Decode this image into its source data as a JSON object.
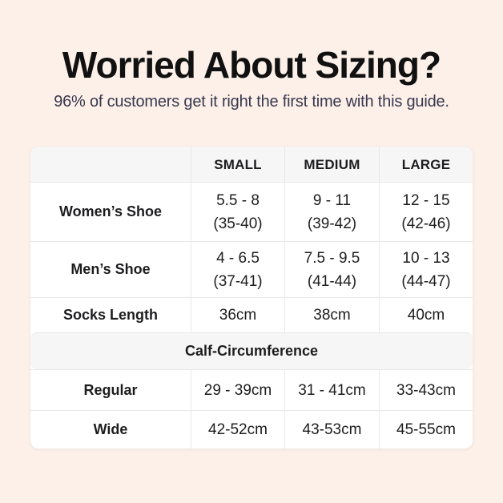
{
  "page": {
    "title": "Worried About Sizing?",
    "subtitle": "96% of customers get it right the first time with this guide."
  },
  "table": {
    "header": {
      "blank": "",
      "small": "SMALL",
      "medium": "MEDIUM",
      "large": "LARGE"
    },
    "womens": {
      "label": "Women’s Shoe",
      "small": [
        "5.5 - 8",
        "(35-40)"
      ],
      "medium": [
        "9 - 11",
        "(39-42)"
      ],
      "large": [
        "12 - 15",
        "(42-46)"
      ]
    },
    "mens": {
      "label": "Men’s Shoe",
      "small": [
        "4 - 6.5",
        "(37-41)"
      ],
      "medium": [
        "7.5 - 9.5",
        "(41-44)"
      ],
      "large": [
        "10 - 13",
        "(44-47)"
      ]
    },
    "socks": {
      "label": "Socks Length",
      "small": "36cm",
      "medium": "38cm",
      "large": "40cm"
    },
    "section": {
      "label": "Calf-Circumference"
    },
    "regular": {
      "label": "Regular",
      "small": "29 - 39cm",
      "medium": "31 - 41cm",
      "large": "33-43cm"
    },
    "wide": {
      "label": "Wide",
      "small": "42-52cm",
      "medium": "43-53cm",
      "large": "45-55cm"
    }
  },
  "colors": {
    "background": "#fcf0e9",
    "table_background": "#ffffff",
    "band_background": "#f6f6f6",
    "border": "#e8e8e8",
    "title_text": "#111111",
    "subtitle_text": "#38384e",
    "body_text": "#1d1d1f"
  }
}
